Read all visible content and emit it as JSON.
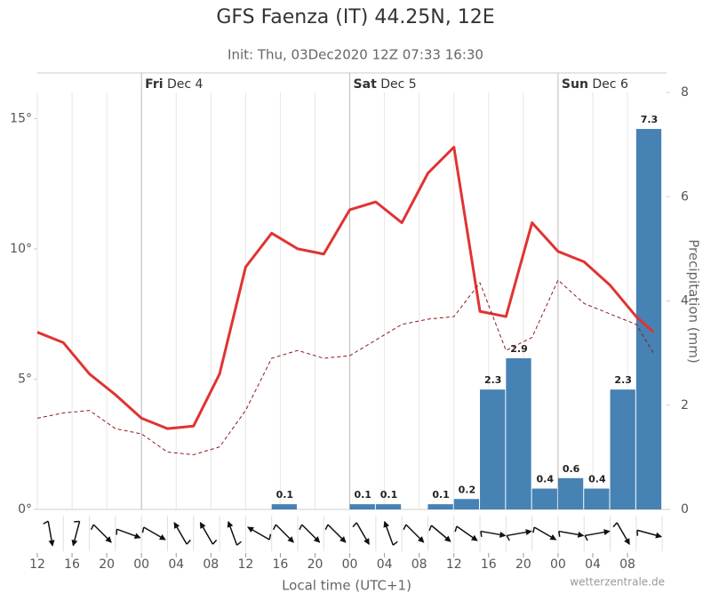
{
  "chart_data": {
    "type": "combo",
    "title": "GFS Faenza (IT) 44.25N, 12E",
    "subtitle": "Init: Thu, 03Dec2020 12Z 07:33 16:30",
    "x_label": "Local time (UTC+1)",
    "y2_label": "Precipitation (mm)",
    "credit": "wetterzentrale.de",
    "xlim": [
      0,
      72.5
    ],
    "xticks": [
      {
        "value": 0,
        "label": "12"
      },
      {
        "value": 4,
        "label": "16"
      },
      {
        "value": 8,
        "label": "20"
      },
      {
        "value": 12,
        "label": "00"
      },
      {
        "value": 16,
        "label": "04"
      },
      {
        "value": 20,
        "label": "08"
      },
      {
        "value": 24,
        "label": "12"
      },
      {
        "value": 28,
        "label": "16"
      },
      {
        "value": 32,
        "label": "20"
      },
      {
        "value": 36,
        "label": "00"
      },
      {
        "value": 40,
        "label": "04"
      },
      {
        "value": 44,
        "label": "08"
      },
      {
        "value": 48,
        "label": "12"
      },
      {
        "value": 52,
        "label": "16"
      },
      {
        "value": 56,
        "label": "20"
      },
      {
        "value": 60,
        "label": "00"
      },
      {
        "value": 64,
        "label": "04"
      },
      {
        "value": 68,
        "label": "08"
      }
    ],
    "days": [
      {
        "value": 12,
        "day": "Fri",
        "date": "Dec 4"
      },
      {
        "value": 36,
        "day": "Sat",
        "date": "Dec 5"
      },
      {
        "value": 60,
        "day": "Sun",
        "date": "Dec 6"
      }
    ],
    "ylim": [
      0,
      16
    ],
    "yticks": [
      {
        "value": 0,
        "label": "0°"
      },
      {
        "value": 5,
        "label": "5°"
      },
      {
        "value": 10,
        "label": "10°"
      },
      {
        "value": 15,
        "label": "15°"
      }
    ],
    "y2lim": [
      0,
      8
    ],
    "y2ticks": [
      0,
      2,
      4,
      6,
      8
    ],
    "series": [
      {
        "name": "Temperature",
        "type": "line",
        "color": "#e03333",
        "dashed": false,
        "x": [
          0,
          3,
          6,
          9,
          12,
          15,
          18,
          21,
          24,
          27,
          30,
          33,
          36,
          39,
          42,
          45,
          48,
          51,
          54,
          57,
          60,
          63,
          66,
          69,
          71
        ],
        "values": [
          6.8,
          6.4,
          5.2,
          4.4,
          3.5,
          3.1,
          3.2,
          5.2,
          9.3,
          10.6,
          10.0,
          9.8,
          11.5,
          11.8,
          11.0,
          12.9,
          13.9,
          7.6,
          7.4,
          11.0,
          9.9,
          9.5,
          8.6,
          7.4,
          6.8
        ]
      },
      {
        "name": "Dew point",
        "type": "line",
        "color": "#8b1a1a",
        "dashed": true,
        "x": [
          0,
          3,
          6,
          9,
          12,
          15,
          18,
          21,
          24,
          27,
          30,
          33,
          36,
          39,
          42,
          45,
          48,
          51,
          54,
          57,
          60,
          63,
          66,
          69,
          71
        ],
        "values": [
          3.5,
          3.7,
          3.8,
          3.1,
          2.9,
          2.2,
          2.1,
          2.4,
          3.8,
          5.8,
          6.1,
          5.8,
          5.9,
          6.5,
          7.1,
          7.3,
          7.4,
          8.7,
          6.1,
          6.6,
          8.8,
          7.9,
          7.5,
          7.1,
          6.0
        ]
      },
      {
        "name": "Precipitation",
        "type": "bar",
        "axis": "y2",
        "color": "#4682b4",
        "bins": [
          0,
          3,
          6,
          9,
          12,
          15,
          18,
          21,
          24,
          27,
          30,
          33,
          36,
          39,
          42,
          45,
          48,
          51,
          54,
          57,
          60,
          63,
          66,
          69,
          72
        ],
        "values": [
          0,
          0,
          0,
          0,
          0,
          0,
          0,
          0,
          0,
          0.1,
          0,
          0,
          0.1,
          0.1,
          0,
          0.1,
          0.2,
          2.3,
          2.9,
          0.4,
          0.6,
          0.4,
          2.3,
          7.3
        ]
      }
    ],
    "wind_direction": [
      170,
      195,
      135,
      110,
      120,
      330,
      330,
      340,
      300,
      135,
      135,
      135,
      150,
      340,
      135,
      130,
      125,
      100,
      80,
      120,
      100,
      80,
      150,
      105
    ]
  }
}
